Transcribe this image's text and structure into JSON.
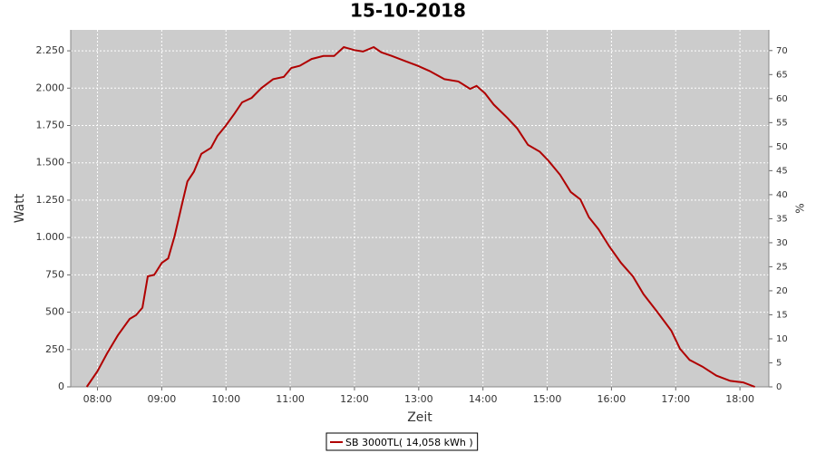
{
  "chart_data": {
    "type": "line",
    "title": "15-10-2018",
    "x_label": "Zeit",
    "y_label": "Watt",
    "y2_label": "%",
    "x": [
      "07:50",
      "08:00",
      "08:09",
      "08:19",
      "08:30",
      "08:36",
      "08:42",
      "08:47",
      "08:53",
      "09:00",
      "09:06",
      "09:12",
      "09:19",
      "09:24",
      "09:30",
      "09:37",
      "09:46",
      "09:52",
      "10:00",
      "10:08",
      "10:15",
      "10:24",
      "10:33",
      "10:44",
      "10:54",
      "11:01",
      "11:09",
      "11:20",
      "11:31",
      "11:41",
      "11:50",
      "12:00",
      "12:08",
      "12:18",
      "12:25",
      "12:35",
      "12:46",
      "12:59",
      "13:10",
      "13:24",
      "13:37",
      "13:48",
      "13:54",
      "14:02",
      "14:10",
      "14:23",
      "14:32",
      "14:42",
      "14:53",
      "15:01",
      "15:12",
      "15:22",
      "15:31",
      "15:39",
      "15:48",
      "15:58",
      "16:09",
      "16:20",
      "16:30",
      "16:43",
      "16:56",
      "17:04",
      "17:13",
      "17:25",
      "17:38",
      "17:51",
      "18:03",
      "18:14"
    ],
    "series": [
      {
        "name": "SB 3000TL( 14,058 kWh )",
        "color": "#b00000",
        "values": [
          0,
          105,
          225,
          345,
          455,
          480,
          530,
          740,
          750,
          830,
          860,
          1010,
          1225,
          1375,
          1440,
          1560,
          1600,
          1680,
          1750,
          1830,
          1905,
          1935,
          2000,
          2060,
          2075,
          2135,
          2150,
          2195,
          2215,
          2215,
          2275,
          2255,
          2245,
          2275,
          2240,
          2215,
          2185,
          2150,
          2115,
          2060,
          2045,
          1995,
          2015,
          1965,
          1890,
          1800,
          1730,
          1620,
          1575,
          1515,
          1420,
          1305,
          1255,
          1135,
          1055,
          940,
          830,
          740,
          620,
          500,
          375,
          255,
          180,
          135,
          75,
          40,
          30,
          0
        ]
      }
    ],
    "xlim": [
      "07:35",
      "18:27"
    ],
    "xticks": [
      "08:00",
      "09:00",
      "10:00",
      "11:00",
      "12:00",
      "13:00",
      "14:00",
      "15:00",
      "16:00",
      "17:00",
      "18:00"
    ],
    "ylim": [
      0,
      2390
    ],
    "yticks": [
      0,
      250,
      500,
      750,
      {
        "value": 1000,
        "label": "1.000"
      },
      {
        "value": 1250,
        "label": "1.250"
      },
      {
        "value": 1500,
        "label": "1.500"
      },
      {
        "value": 1750,
        "label": "1.750"
      },
      {
        "value": 2000,
        "label": "2.000"
      },
      {
        "value": 2250,
        "label": "2.250"
      }
    ],
    "y2lim": [
      0,
      74.3
    ],
    "y2ticks": [
      0,
      5,
      10,
      15,
      20,
      25,
      30,
      35,
      40,
      45,
      50,
      55,
      60,
      65,
      70
    ],
    "grid": true,
    "legend": "bottom",
    "background": "#cccccc"
  }
}
